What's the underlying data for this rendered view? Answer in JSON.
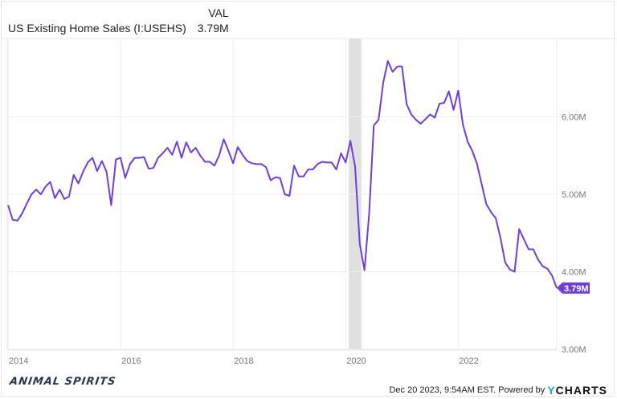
{
  "header": {
    "value_col": "VAL",
    "series_name": "US Existing Home Sales (I:USEHS)",
    "current_value": "3.79M"
  },
  "footer": {
    "timestamp": "Dec 20 2023, 9:54AM EST. Powered by",
    "brand_y": "Y",
    "brand_rest": "CHARTS",
    "logo_text": "ANIMAL SPIRITS"
  },
  "colors": {
    "line": "#6f3fd8",
    "recession": "#e0e0e0",
    "grid": "#eeeeee"
  },
  "chart_data": {
    "type": "line",
    "title": "",
    "xlabel": "",
    "ylabel": "",
    "ylim": [
      3,
      7
    ],
    "yticks": [
      "3.00M",
      "4.00M",
      "5.00M",
      "6.00M"
    ],
    "ytick_values": [
      3,
      4,
      5,
      6
    ],
    "xticks": [
      "2014",
      "2016",
      "2018",
      "2020",
      "2022"
    ],
    "y_axis_side": "right",
    "grid": true,
    "last_value_label": "3.79M",
    "shaded_periods": [
      [
        "2020-02",
        "2020-04"
      ]
    ],
    "series": [
      {
        "name": "US Existing Home Sales (I:USEHS)",
        "x": [
          "2014-01",
          "2014-02",
          "2014-03",
          "2014-04",
          "2014-05",
          "2014-06",
          "2014-07",
          "2014-08",
          "2014-09",
          "2014-10",
          "2014-11",
          "2014-12",
          "2015-01",
          "2015-02",
          "2015-03",
          "2015-04",
          "2015-05",
          "2015-06",
          "2015-07",
          "2015-08",
          "2015-09",
          "2015-10",
          "2015-11",
          "2015-12",
          "2016-01",
          "2016-02",
          "2016-03",
          "2016-04",
          "2016-05",
          "2016-06",
          "2016-07",
          "2016-08",
          "2016-09",
          "2016-10",
          "2016-11",
          "2016-12",
          "2017-01",
          "2017-02",
          "2017-03",
          "2017-04",
          "2017-05",
          "2017-06",
          "2017-07",
          "2017-08",
          "2017-09",
          "2017-10",
          "2017-11",
          "2017-12",
          "2018-01",
          "2018-02",
          "2018-03",
          "2018-04",
          "2018-05",
          "2018-06",
          "2018-07",
          "2018-08",
          "2018-09",
          "2018-10",
          "2018-11",
          "2018-12",
          "2019-01",
          "2019-02",
          "2019-03",
          "2019-04",
          "2019-05",
          "2019-06",
          "2019-07",
          "2019-08",
          "2019-09",
          "2019-10",
          "2019-11",
          "2019-12",
          "2020-01",
          "2020-02",
          "2020-03",
          "2020-04",
          "2020-05",
          "2020-06",
          "2020-07",
          "2020-08",
          "2020-09",
          "2020-10",
          "2020-11",
          "2020-12",
          "2021-01",
          "2021-02",
          "2021-03",
          "2021-04",
          "2021-05",
          "2021-06",
          "2021-07",
          "2021-08",
          "2021-09",
          "2021-10",
          "2021-11",
          "2021-12",
          "2022-01",
          "2022-02",
          "2022-03",
          "2022-04",
          "2022-05",
          "2022-06",
          "2022-07",
          "2022-08",
          "2022-09",
          "2022-10",
          "2022-11",
          "2022-12",
          "2023-01",
          "2023-02",
          "2023-03",
          "2023-04",
          "2023-05",
          "2023-06",
          "2023-07",
          "2023-08",
          "2023-09",
          "2023-10"
        ],
        "y": [
          4.86,
          4.67,
          4.66,
          4.75,
          4.88,
          5.0,
          5.06,
          5.0,
          5.1,
          5.16,
          4.95,
          5.06,
          4.94,
          4.97,
          5.25,
          5.14,
          5.29,
          5.41,
          5.47,
          5.3,
          5.43,
          5.29,
          4.86,
          5.45,
          5.47,
          5.21,
          5.39,
          5.47,
          5.47,
          5.48,
          5.33,
          5.34,
          5.47,
          5.53,
          5.6,
          5.51,
          5.68,
          5.47,
          5.67,
          5.54,
          5.6,
          5.5,
          5.42,
          5.42,
          5.37,
          5.5,
          5.71,
          5.56,
          5.4,
          5.61,
          5.51,
          5.43,
          5.4,
          5.39,
          5.39,
          5.35,
          5.18,
          5.22,
          5.21,
          5.0,
          4.98,
          5.37,
          5.23,
          5.23,
          5.32,
          5.32,
          5.39,
          5.42,
          5.41,
          5.41,
          5.32,
          5.53,
          5.41,
          5.69,
          5.36,
          4.36,
          4.02,
          4.75,
          5.89,
          5.96,
          6.44,
          6.72,
          6.58,
          6.65,
          6.65,
          6.16,
          6.03,
          5.96,
          5.91,
          5.97,
          6.03,
          5.99,
          6.17,
          6.18,
          6.33,
          6.09,
          6.34,
          5.9,
          5.68,
          5.56,
          5.39,
          5.13,
          4.87,
          4.77,
          4.69,
          4.44,
          4.12,
          4.03,
          4.0,
          4.55,
          4.42,
          4.29,
          4.29,
          4.16,
          4.07,
          4.04,
          3.95,
          3.79
        ]
      }
    ]
  }
}
